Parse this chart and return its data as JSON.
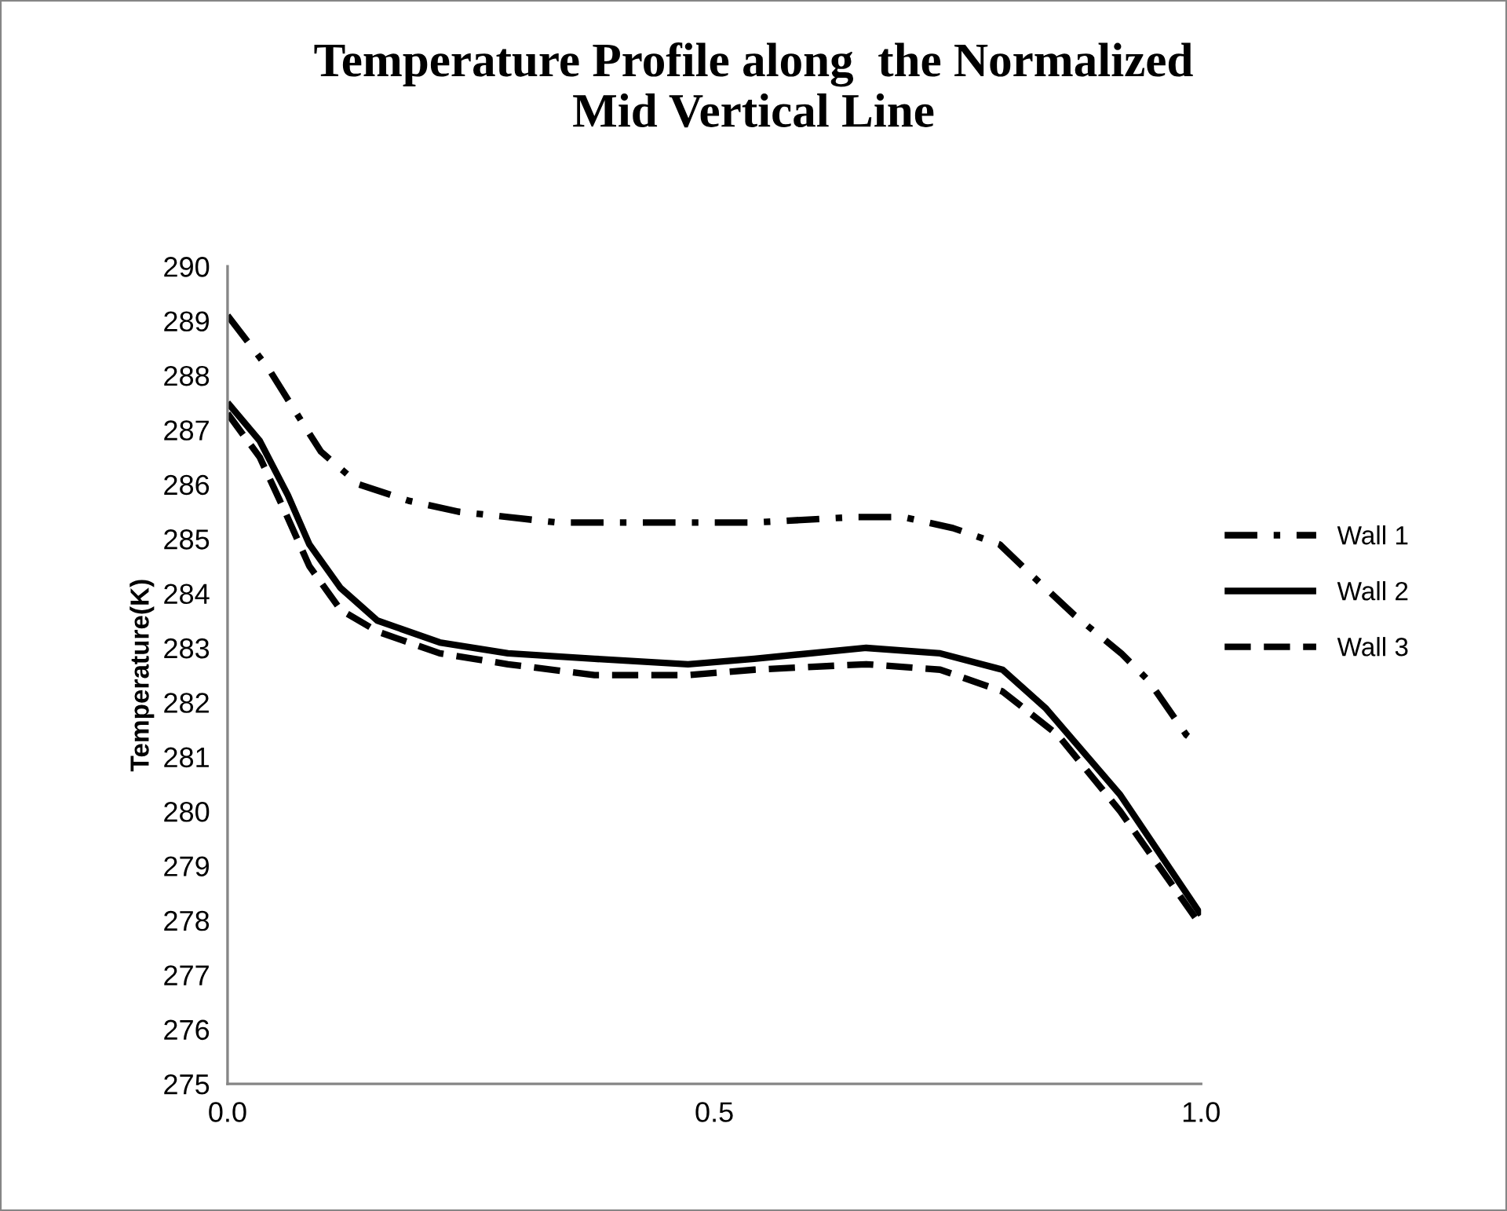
{
  "chart_data": {
    "type": "line",
    "title": "Temperature Profile along  the Normalized\nMid Vertical Line",
    "ylabel": "Temperature(K)",
    "xlim": [
      0,
      1
    ],
    "xticks": [
      {
        "value": 0,
        "label": "0.0"
      },
      {
        "value": 0.5,
        "label": "0.5"
      },
      {
        "value": 1,
        "label": "1.0"
      }
    ],
    "ylim": [
      275,
      290
    ],
    "yticks": [
      275,
      276,
      277,
      278,
      279,
      280,
      281,
      282,
      283,
      284,
      285,
      286,
      287,
      288,
      289,
      290
    ],
    "grid": false,
    "legend": "right",
    "marker": "none",
    "series": [
      {
        "name": "Wall 1",
        "color": "#000000",
        "line_style": "dashdot",
        "x": [
          0,
          0.043,
          0.078,
          0.096,
          0.135,
          0.186,
          0.237,
          0.288,
          0.339,
          0.39,
          0.454,
          0.541,
          0.643,
          0.694,
          0.745,
          0.793,
          0.828,
          0.87,
          0.918,
          0.946,
          0.985,
          1.0
        ],
        "values": [
          289.1,
          288.1,
          287.1,
          286.6,
          286.0,
          285.7,
          285.5,
          285.4,
          285.3,
          285.3,
          285.3,
          285.3,
          285.4,
          285.4,
          285.2,
          284.9,
          284.3,
          283.6,
          282.9,
          282.4,
          281.4,
          281.2
        ]
      },
      {
        "name": "Wall 2",
        "color": "#000000",
        "line_style": "solid",
        "x": [
          0,
          0.033,
          0.062,
          0.084,
          0.116,
          0.154,
          0.218,
          0.288,
          0.377,
          0.473,
          0.541,
          0.656,
          0.732,
          0.796,
          0.84,
          0.917,
          1.0
        ],
        "values": [
          287.5,
          286.8,
          285.8,
          284.9,
          284.1,
          283.5,
          283.1,
          282.9,
          282.8,
          282.7,
          282.8,
          283.0,
          282.9,
          282.6,
          281.9,
          280.3,
          278.1
        ]
      },
      {
        "name": "Wall 3",
        "color": "#000000",
        "line_style": "dashed",
        "x": [
          0,
          0.033,
          0.059,
          0.084,
          0.116,
          0.154,
          0.218,
          0.288,
          0.377,
          0.473,
          0.541,
          0.656,
          0.732,
          0.796,
          0.853,
          0.917,
          1.0
        ],
        "values": [
          287.3,
          286.5,
          285.5,
          284.5,
          283.7,
          283.3,
          282.9,
          282.7,
          282.5,
          282.5,
          282.6,
          282.7,
          282.6,
          282.2,
          281.4,
          280.0,
          277.9
        ]
      }
    ]
  }
}
